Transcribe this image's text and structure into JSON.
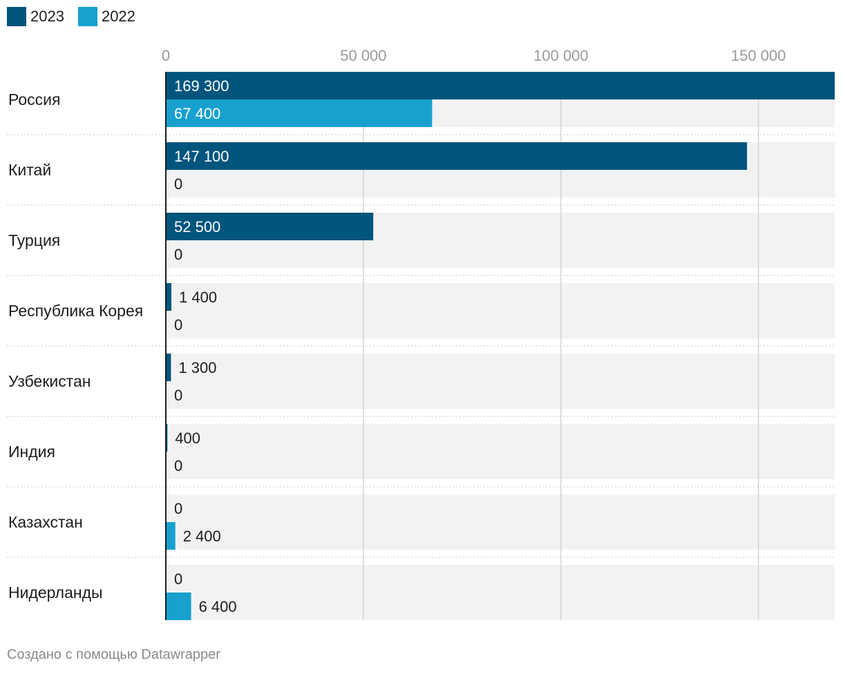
{
  "chart_data": {
    "type": "bar",
    "orientation": "horizontal",
    "categories": [
      "Россия",
      "Китай",
      "Турция",
      "Республика Корея",
      "Узбекистан",
      "Индия",
      "Казахстан",
      "Нидерланды"
    ],
    "series": [
      {
        "name": "2023",
        "color": "#00557d",
        "values": [
          169300,
          147100,
          52500,
          1400,
          1300,
          400,
          0,
          0
        ],
        "labels": [
          "169 300",
          "147 100",
          "52 500",
          "1 400",
          "1 300",
          "400",
          "0",
          "0"
        ]
      },
      {
        "name": "2022",
        "color": "#18a0ce",
        "values": [
          67400,
          0,
          0,
          0,
          0,
          0,
          2400,
          6400
        ],
        "labels": [
          "67 400",
          "0",
          "0",
          "0",
          "0",
          "0",
          "2 400",
          "6 400"
        ]
      }
    ],
    "x_ticks": [
      0,
      50000,
      100000,
      150000
    ],
    "x_tick_labels": [
      "0",
      "50 000",
      "100 000",
      "150 000"
    ],
    "xlim": [
      0,
      169300
    ],
    "grid": true,
    "legend_position": "top-left"
  },
  "footer": {
    "credit": "Создано с помощью Datawrapper"
  }
}
